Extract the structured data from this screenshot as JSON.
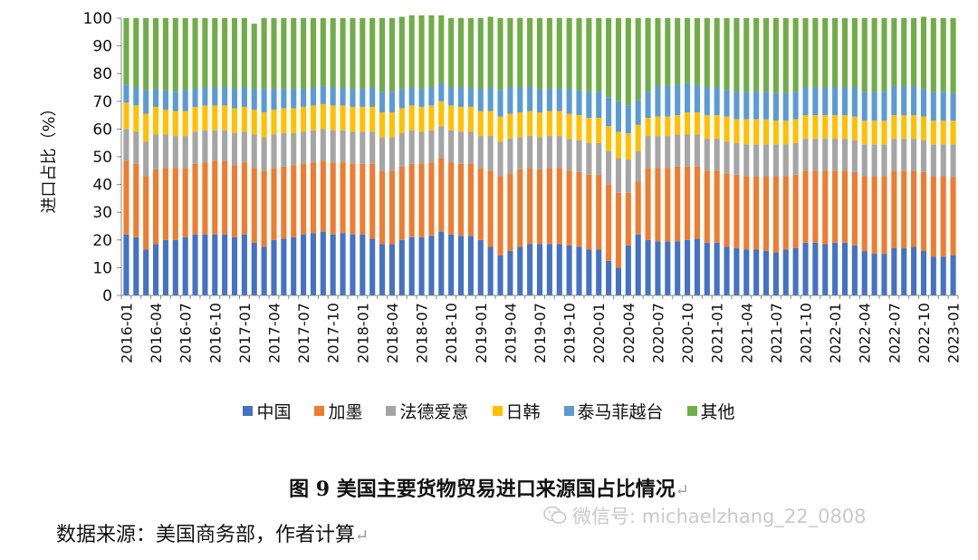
{
  "chart_data": {
    "type": "bar",
    "stacked": true,
    "ylabel": "进口占比（%）",
    "ylim": [
      0,
      100
    ],
    "yticks": [
      0,
      10,
      20,
      30,
      40,
      50,
      60,
      70,
      80,
      90,
      100
    ],
    "grid": false,
    "legend_position": "bottom",
    "tick_labels": [
      "2016-01",
      "2016-04",
      "2016-07",
      "2016-10",
      "2017-01",
      "2017-04",
      "2017-07",
      "2017-10",
      "2018-01",
      "2018-04",
      "2018-07",
      "2018-10",
      "2019-01",
      "2019-04",
      "2019-07",
      "2019-10",
      "2020-01",
      "2020-04",
      "2020-07",
      "2020-10",
      "2021-01",
      "2021-04",
      "2021-07",
      "2021-10",
      "2022-01",
      "2022-04",
      "2022-07",
      "2022-10",
      "2023-01"
    ],
    "categories": [
      "2016-01",
      "2016-02",
      "2016-03",
      "2016-04",
      "2016-05",
      "2016-06",
      "2016-07",
      "2016-08",
      "2016-09",
      "2016-10",
      "2016-11",
      "2016-12",
      "2017-01",
      "2017-02",
      "2017-03",
      "2017-04",
      "2017-05",
      "2017-06",
      "2017-07",
      "2017-08",
      "2017-09",
      "2017-10",
      "2017-11",
      "2017-12",
      "2018-01",
      "2018-02",
      "2018-03",
      "2018-04",
      "2018-05",
      "2018-06",
      "2018-07",
      "2018-08",
      "2018-09",
      "2018-10",
      "2018-11",
      "2018-12",
      "2019-01",
      "2019-02",
      "2019-03",
      "2019-04",
      "2019-05",
      "2019-06",
      "2019-07",
      "2019-08",
      "2019-09",
      "2019-10",
      "2019-11",
      "2019-12",
      "2020-01",
      "2020-02",
      "2020-03",
      "2020-04",
      "2020-05",
      "2020-06",
      "2020-07",
      "2020-08",
      "2020-09",
      "2020-10",
      "2020-11",
      "2020-12",
      "2021-01",
      "2021-02",
      "2021-03",
      "2021-04",
      "2021-05",
      "2021-06",
      "2021-07",
      "2021-08",
      "2021-09",
      "2021-10",
      "2021-11",
      "2021-12",
      "2022-01",
      "2022-02",
      "2022-03",
      "2022-04",
      "2022-05",
      "2022-06",
      "2022-07",
      "2022-08",
      "2022-09",
      "2022-10",
      "2022-11",
      "2022-12",
      "2023-01"
    ],
    "series": [
      {
        "name": "中国",
        "color": "#4472C4",
        "values": [
          22,
          21,
          16.5,
          18.5,
          20,
          20,
          21,
          22,
          22,
          22,
          22,
          21,
          22,
          19,
          17.5,
          20,
          20.5,
          21,
          22,
          22.5,
          23,
          22,
          22.5,
          22,
          22,
          20.5,
          18.5,
          18.5,
          20,
          21,
          21,
          21.5,
          23,
          22,
          21.5,
          21.5,
          20,
          17.5,
          14.5,
          16,
          17.5,
          18.5,
          18.5,
          18.5,
          18.5,
          18,
          17.5,
          16.5,
          16.5,
          12.5,
          10,
          18,
          22,
          20,
          19.5,
          19.5,
          19.5,
          20,
          20.5,
          19,
          19,
          17.5,
          17,
          16.5,
          16.5,
          16,
          15.5,
          16.5,
          17,
          19,
          19,
          18.5,
          19,
          19,
          18,
          16,
          15,
          15,
          17,
          17,
          17.5,
          16,
          14,
          14,
          14.5
        ]
      },
      {
        "name": "加墨",
        "color": "#ED7D31",
        "values": [
          26.5,
          26.5,
          26.5,
          27,
          26,
          26,
          25,
          25.5,
          26,
          26.5,
          26.5,
          26,
          26,
          27,
          27.5,
          26,
          26,
          26,
          25.5,
          25.5,
          25.5,
          26,
          25.5,
          25.5,
          25.5,
          27,
          26.5,
          26.5,
          26.5,
          26.5,
          26.5,
          26.5,
          26.5,
          26,
          26,
          26,
          26,
          27.5,
          28.5,
          28,
          28,
          27.5,
          27,
          27.5,
          27.5,
          27,
          27,
          27,
          27,
          27.5,
          27,
          19,
          19,
          26,
          26.5,
          26.5,
          27,
          26.5,
          26,
          26,
          26,
          26.5,
          26.5,
          26.5,
          26.5,
          27,
          27.5,
          26.5,
          26.5,
          26,
          26,
          26.5,
          26,
          26,
          26.5,
          27,
          28,
          28,
          28,
          28,
          27.5,
          28.5,
          29,
          29,
          28
        ]
      },
      {
        "name": "法德爱意",
        "color": "#A5A5A5",
        "values": [
          11.5,
          11.5,
          12.5,
          12.5,
          12,
          11.5,
          11.5,
          11.5,
          11.5,
          11,
          11,
          11.5,
          11,
          12,
          12,
          12,
          12,
          11.5,
          11.5,
          11.5,
          11.5,
          11.5,
          11.5,
          11.5,
          11.5,
          11.5,
          12,
          12,
          12,
          12,
          11.5,
          11.5,
          11.5,
          11.5,
          11.5,
          11.5,
          11.5,
          12.5,
          12.5,
          12.5,
          11.5,
          11.5,
          11.5,
          11.5,
          11.5,
          11.5,
          11.5,
          11.5,
          11.5,
          12,
          12.5,
          12,
          11,
          11.5,
          11.5,
          11.5,
          11.5,
          11.5,
          11.5,
          11.5,
          11.5,
          11.5,
          11.5,
          11.5,
          11.5,
          11.5,
          11.5,
          11.5,
          11.5,
          11.5,
          11.5,
          11.5,
          11.5,
          11.5,
          11.5,
          11.5,
          11.5,
          11.5,
          11.5,
          11.5,
          11.5,
          11.5,
          11.5,
          11.5,
          12
        ]
      },
      {
        "name": "日韩",
        "color": "#FFC000",
        "values": [
          9.5,
          9.5,
          10,
          10,
          9,
          9,
          9,
          9,
          9,
          9,
          9,
          9,
          9,
          9,
          9,
          9,
          9,
          9,
          9,
          9,
          9,
          9,
          9,
          9,
          9,
          9,
          9,
          9,
          9,
          9,
          9,
          9,
          9,
          9,
          9,
          9,
          9,
          9,
          9,
          9,
          9,
          9,
          9,
          9,
          9,
          9,
          9,
          9,
          9,
          9,
          9.5,
          9.5,
          9.5,
          6.5,
          7,
          7,
          7,
          8,
          8,
          8.5,
          8.5,
          9,
          8.5,
          9,
          9,
          9,
          8.5,
          8.5,
          8.5,
          8.5,
          8.5,
          8.5,
          8.5,
          8.5,
          8.5,
          8.5,
          8.5,
          8.5,
          8.5,
          8.5,
          8.5,
          8.5,
          8.5,
          8.5,
          8.5
        ]
      },
      {
        "name": "泰马菲越台",
        "color": "#5B9BD5",
        "values": [
          6.5,
          6.5,
          8.5,
          6.5,
          7,
          7,
          7.5,
          6.5,
          6.5,
          6.5,
          6.5,
          7,
          7,
          7.5,
          8.5,
          7.5,
          7,
          7,
          6.5,
          6.5,
          6.5,
          6.5,
          6.5,
          6.5,
          6.5,
          7,
          7.5,
          7.5,
          7,
          6.5,
          6.5,
          6.5,
          6.5,
          6.5,
          7,
          7,
          8,
          8.5,
          9.5,
          9.5,
          9,
          9,
          8.5,
          8,
          8,
          9,
          9,
          9.5,
          9.5,
          10.5,
          11,
          10,
          9,
          9.5,
          11,
          11,
          11,
          10.5,
          10,
          10,
          10,
          9.5,
          10,
          10,
          10,
          10,
          10,
          10,
          10,
          10,
          10,
          10,
          10,
          10,
          10.5,
          10.5,
          10.5,
          10.5,
          10.5,
          10.5,
          10.5,
          10,
          10.5,
          10.5,
          10
        ]
      },
      {
        "name": "其他",
        "color": "#70AD47",
        "values": [
          24,
          25,
          26,
          25.5,
          26,
          26.5,
          26,
          25.5,
          25,
          25,
          25,
          25.5,
          25,
          23.5,
          25.5,
          25.5,
          25.5,
          25.5,
          25.5,
          25,
          24.5,
          25,
          25,
          25.5,
          25.5,
          25,
          26.5,
          26.5,
          26,
          26,
          26.5,
          26,
          24.5,
          25,
          25,
          25,
          25.5,
          25.5,
          26,
          25,
          25,
          24.5,
          25.5,
          25.5,
          25.5,
          25.5,
          26,
          26.5,
          26.5,
          28.5,
          30,
          31.5,
          29.5,
          26.5,
          24.5,
          24.5,
          24,
          23.5,
          24,
          25,
          25,
          26,
          26.5,
          26.5,
          26.5,
          26.5,
          27,
          27,
          26.5,
          25,
          25,
          25,
          25,
          25,
          25,
          26.5,
          26.5,
          26.5,
          24.5,
          24.5,
          24.5,
          26,
          26.5,
          26.5,
          27
        ]
      }
    ]
  },
  "caption": {
    "text": "图 9    美国主要货物贸易进口来源国占比情况",
    "mark": "↵"
  },
  "source": {
    "text": "数据来源：美国商务部，作者计算",
    "mark": "↵"
  },
  "watermark": {
    "text": "微信号: michaelzhang_22_0808",
    "icon": "wechat-icon"
  }
}
